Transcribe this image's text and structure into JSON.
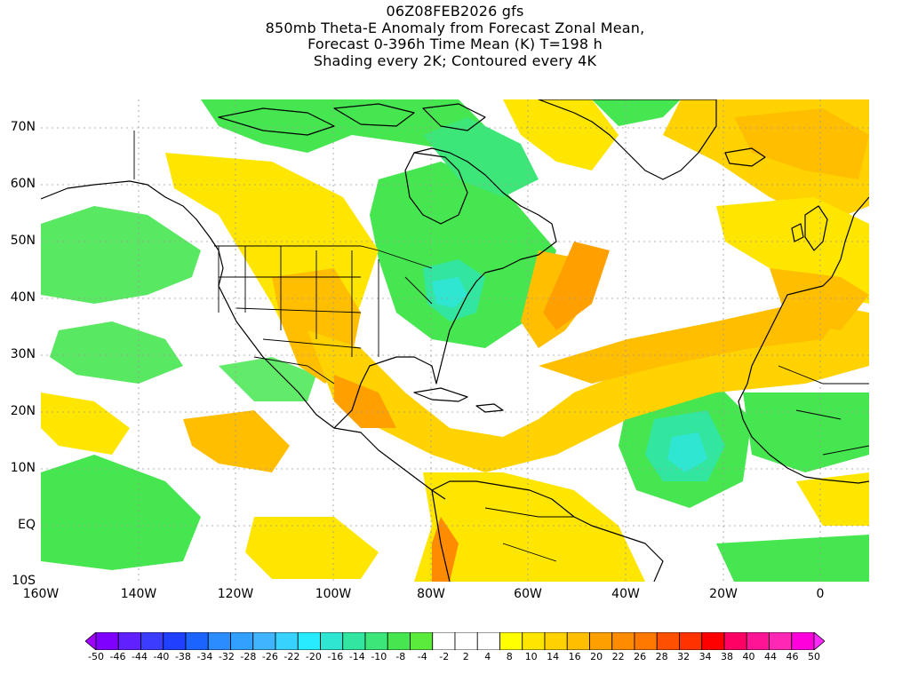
{
  "title": {
    "line1": "06Z08FEB2026 gfs",
    "line2": "850mb Theta-E Anomaly from Forecast Zonal Mean,",
    "line3": "Forecast 0-396h Time Mean (K) T=198 h",
    "line4": "Shading every 2K; Contoured every 4K"
  },
  "map": {
    "lon_range": [
      -160,
      10
    ],
    "lat_range": [
      -10,
      75
    ],
    "lat_labels": [
      "70N",
      "60N",
      "50N",
      "40N",
      "30N",
      "20N",
      "10N",
      "EQ",
      "10S"
    ],
    "lon_labels": [
      "160W",
      "140W",
      "120W",
      "100W",
      "80W",
      "60W",
      "40W",
      "20W",
      "0"
    ]
  },
  "colorbar": {
    "labels": [
      "-50",
      "-46",
      "-44",
      "-40",
      "-38",
      "-34",
      "-32",
      "-28",
      "-26",
      "-22",
      "-20",
      "-16",
      "-14",
      "-10",
      "-8",
      "-4",
      "-2",
      "2",
      "4",
      "8",
      "10",
      "14",
      "16",
      "20",
      "22",
      "26",
      "28",
      "32",
      "34",
      "38",
      "40",
      "44",
      "46",
      "50"
    ],
    "colors": [
      "#a000ff",
      "#8000ff",
      "#6020ff",
      "#3c3cff",
      "#2040ff",
      "#1c64ff",
      "#2a8cff",
      "#32a0ff",
      "#40b4ff",
      "#38d2ff",
      "#28ebff",
      "#2ee6d2",
      "#32e6a0",
      "#3ce678",
      "#46e650",
      "#5aeb3c",
      "#ffffff",
      "#ffffff",
      "#ffffff",
      "#ffff00",
      "#ffe600",
      "#ffd200",
      "#ffbe00",
      "#ffa000",
      "#ff8c00",
      "#ff7800",
      "#ff5000",
      "#ff3200",
      "#ff0000",
      "#ff0064",
      "#ff1496",
      "#ff28b4",
      "#ff00dc",
      "#ff28ff"
    ]
  }
}
